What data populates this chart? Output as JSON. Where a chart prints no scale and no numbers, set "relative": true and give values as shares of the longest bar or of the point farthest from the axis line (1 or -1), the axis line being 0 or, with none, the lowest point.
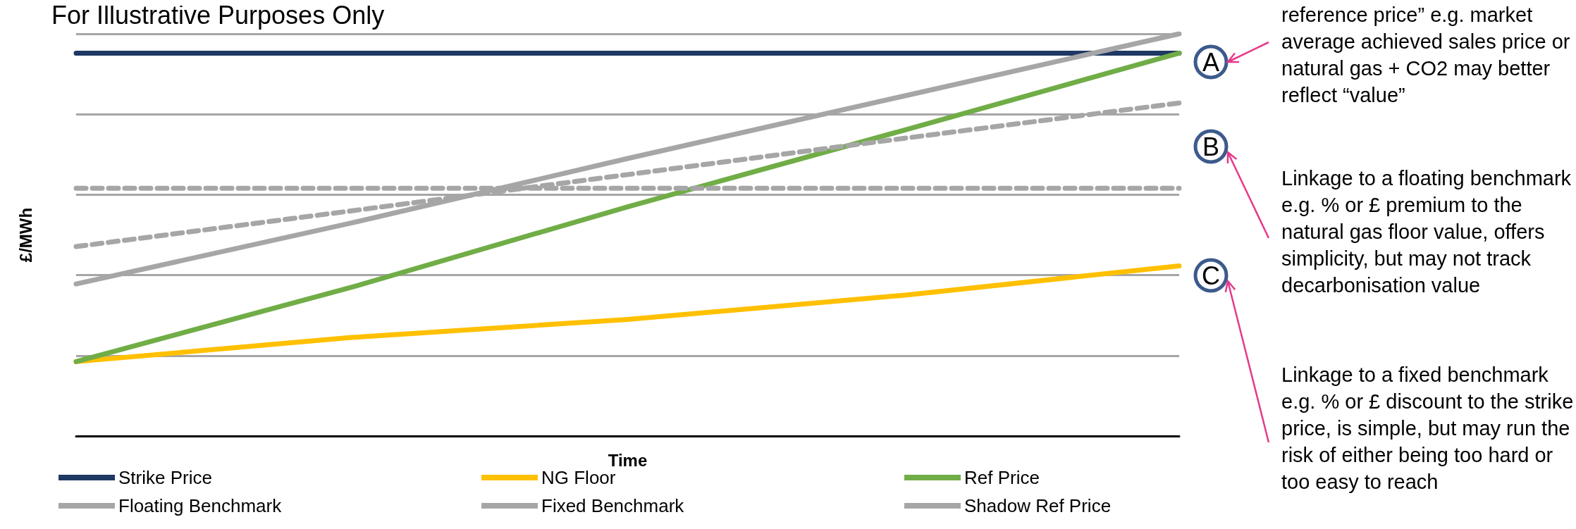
{
  "chart_data": {
    "type": "line",
    "title": "For Illustrative Purposes Only",
    "xlabel": "Time",
    "ylabel": "£/MWh",
    "relative": true,
    "grid": "y",
    "legend": "bottom",
    "categories": [
      null,
      null,
      null,
      null,
      null
    ],
    "series": [
      {
        "name": "Strike Price",
        "color": "#1f3864",
        "values": [
          0.952,
          0.952,
          0.952,
          0.952,
          0.952
        ]
      },
      {
        "name": "NG Floor",
        "color": "#ffc000",
        "values": [
          0.185,
          0.245,
          0.29,
          0.35,
          0.423
        ]
      },
      {
        "name": "Ref Price",
        "color": "#70ad47",
        "values": [
          0.185,
          0.37,
          0.57,
          0.76,
          0.952
        ]
      },
      {
        "name": "Floating Benchmark",
        "color": "#a6a6a6",
        "line_style": "dashed",
        "values": [
          0.471,
          0.56,
          0.65,
          0.74,
          0.828
        ]
      },
      {
        "name": "Fixed Benchmark",
        "color": "#a6a6a6",
        "line_style": "dashed",
        "values": [
          0.616,
          0.616,
          0.616,
          0.616,
          0.616
        ]
      },
      {
        "name": "Shadow Ref Price",
        "color": "#a6a6a6",
        "values": [
          0.378,
          0.53,
          0.69,
          0.845,
          1
        ]
      }
    ],
    "annotations": [
      "reference price” e.g. market average achieved sales price or natural gas + CO2 may better reflect “value”",
      "Linkage to a floating benchmark e.g. % or £ premium to the natural gas floor value, offers simplicity, but may not track decarbonisation value",
      "Linkage to a fixed benchmark e.g. % or £ discount to the strike price, is simple, but may run the risk of either being too hard or too easy to reach",
      "A",
      "B",
      "C"
    ]
  }
}
